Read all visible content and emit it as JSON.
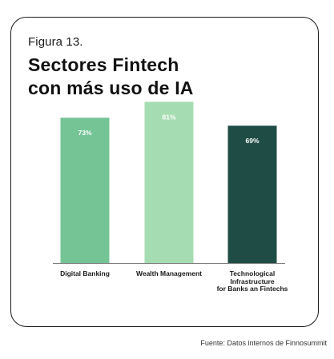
{
  "figure_label": "Figura 13.",
  "title_line1": "Sectores Fintech",
  "title_line2": "con más uso de IA",
  "source": "Fuente: Datos internos de Finnosummit",
  "colors": {
    "digital_banking": "#74c496",
    "wealth_management": "#a6dcb1",
    "tech_infra": "#1f4d45",
    "axis": "#555555"
  },
  "chart_data": {
    "type": "bar",
    "title": "Sectores Fintech con más uso de IA",
    "categories": [
      "Digital Banking",
      "Wealth Management",
      "Technological Infrastructure for Banks an Fintechs"
    ],
    "category_display": [
      "Digital Banking",
      "Wealth Management",
      "Technological\nInfrastructure\nfor Banks an Fintechs"
    ],
    "values": [
      73,
      81,
      69
    ],
    "data_labels": [
      "73%",
      "81%",
      "69%"
    ],
    "unit": "%",
    "xlabel": "",
    "ylabel": "",
    "ylim": [
      0,
      100
    ],
    "grid": false,
    "legend": "none"
  }
}
